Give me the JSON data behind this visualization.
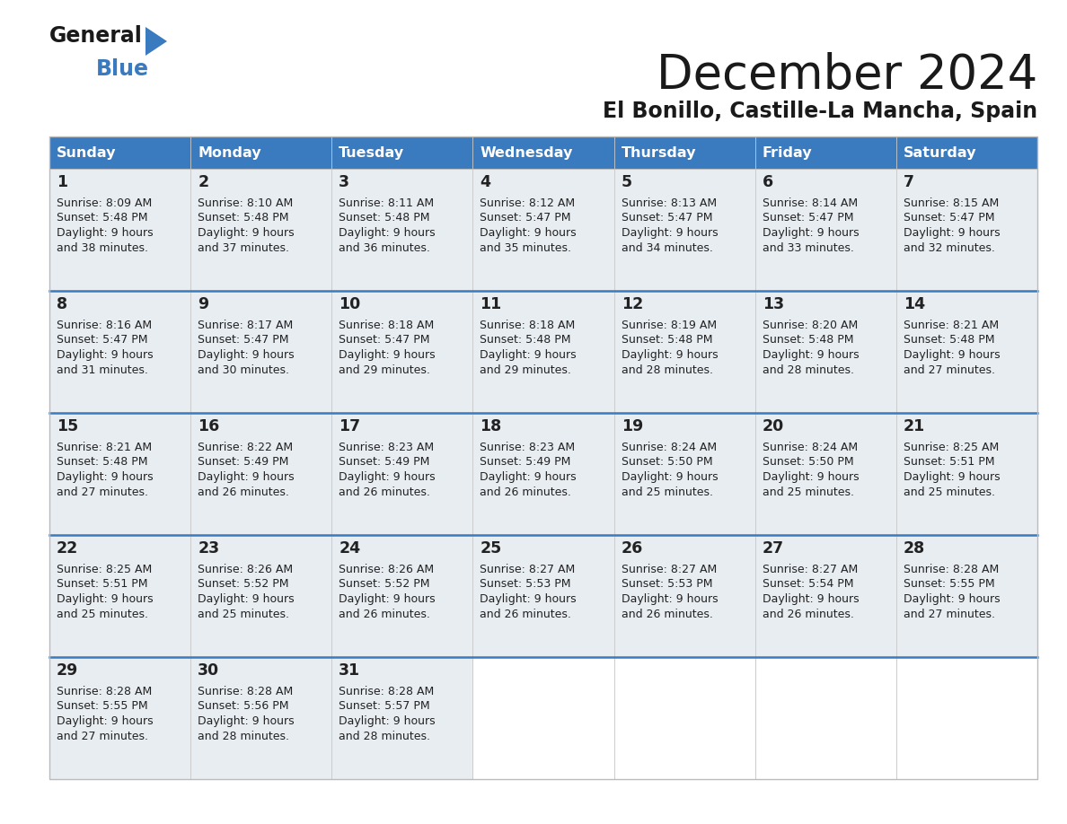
{
  "title": "December 2024",
  "subtitle": "El Bonillo, Castille-La Mancha, Spain",
  "days_of_week": [
    "Sunday",
    "Monday",
    "Tuesday",
    "Wednesday",
    "Thursday",
    "Friday",
    "Saturday"
  ],
  "header_bg": "#3a7abf",
  "header_text": "#ffffff",
  "cell_bg": "#e8edf2",
  "empty_cell_bg": "#ffffff",
  "separator_color": "#3a7abf",
  "text_color": "#222222",
  "calendar_data": [
    [
      {
        "day": 1,
        "sunrise": "8:09 AM",
        "sunset": "5:48 PM",
        "daylight": "9 hours and 38 minutes."
      },
      {
        "day": 2,
        "sunrise": "8:10 AM",
        "sunset": "5:48 PM",
        "daylight": "9 hours and 37 minutes."
      },
      {
        "day": 3,
        "sunrise": "8:11 AM",
        "sunset": "5:48 PM",
        "daylight": "9 hours and 36 minutes."
      },
      {
        "day": 4,
        "sunrise": "8:12 AM",
        "sunset": "5:47 PM",
        "daylight": "9 hours and 35 minutes."
      },
      {
        "day": 5,
        "sunrise": "8:13 AM",
        "sunset": "5:47 PM",
        "daylight": "9 hours and 34 minutes."
      },
      {
        "day": 6,
        "sunrise": "8:14 AM",
        "sunset": "5:47 PM",
        "daylight": "9 hours and 33 minutes."
      },
      {
        "day": 7,
        "sunrise": "8:15 AM",
        "sunset": "5:47 PM",
        "daylight": "9 hours and 32 minutes."
      }
    ],
    [
      {
        "day": 8,
        "sunrise": "8:16 AM",
        "sunset": "5:47 PM",
        "daylight": "9 hours and 31 minutes."
      },
      {
        "day": 9,
        "sunrise": "8:17 AM",
        "sunset": "5:47 PM",
        "daylight": "9 hours and 30 minutes."
      },
      {
        "day": 10,
        "sunrise": "8:18 AM",
        "sunset": "5:47 PM",
        "daylight": "9 hours and 29 minutes."
      },
      {
        "day": 11,
        "sunrise": "8:18 AM",
        "sunset": "5:48 PM",
        "daylight": "9 hours and 29 minutes."
      },
      {
        "day": 12,
        "sunrise": "8:19 AM",
        "sunset": "5:48 PM",
        "daylight": "9 hours and 28 minutes."
      },
      {
        "day": 13,
        "sunrise": "8:20 AM",
        "sunset": "5:48 PM",
        "daylight": "9 hours and 28 minutes."
      },
      {
        "day": 14,
        "sunrise": "8:21 AM",
        "sunset": "5:48 PM",
        "daylight": "9 hours and 27 minutes."
      }
    ],
    [
      {
        "day": 15,
        "sunrise": "8:21 AM",
        "sunset": "5:48 PM",
        "daylight": "9 hours and 27 minutes."
      },
      {
        "day": 16,
        "sunrise": "8:22 AM",
        "sunset": "5:49 PM",
        "daylight": "9 hours and 26 minutes."
      },
      {
        "day": 17,
        "sunrise": "8:23 AM",
        "sunset": "5:49 PM",
        "daylight": "9 hours and 26 minutes."
      },
      {
        "day": 18,
        "sunrise": "8:23 AM",
        "sunset": "5:49 PM",
        "daylight": "9 hours and 26 minutes."
      },
      {
        "day": 19,
        "sunrise": "8:24 AM",
        "sunset": "5:50 PM",
        "daylight": "9 hours and 25 minutes."
      },
      {
        "day": 20,
        "sunrise": "8:24 AM",
        "sunset": "5:50 PM",
        "daylight": "9 hours and 25 minutes."
      },
      {
        "day": 21,
        "sunrise": "8:25 AM",
        "sunset": "5:51 PM",
        "daylight": "9 hours and 25 minutes."
      }
    ],
    [
      {
        "day": 22,
        "sunrise": "8:25 AM",
        "sunset": "5:51 PM",
        "daylight": "9 hours and 25 minutes."
      },
      {
        "day": 23,
        "sunrise": "8:26 AM",
        "sunset": "5:52 PM",
        "daylight": "9 hours and 25 minutes."
      },
      {
        "day": 24,
        "sunrise": "8:26 AM",
        "sunset": "5:52 PM",
        "daylight": "9 hours and 26 minutes."
      },
      {
        "day": 25,
        "sunrise": "8:27 AM",
        "sunset": "5:53 PM",
        "daylight": "9 hours and 26 minutes."
      },
      {
        "day": 26,
        "sunrise": "8:27 AM",
        "sunset": "5:53 PM",
        "daylight": "9 hours and 26 minutes."
      },
      {
        "day": 27,
        "sunrise": "8:27 AM",
        "sunset": "5:54 PM",
        "daylight": "9 hours and 26 minutes."
      },
      {
        "day": 28,
        "sunrise": "8:28 AM",
        "sunset": "5:55 PM",
        "daylight": "9 hours and 27 minutes."
      }
    ],
    [
      {
        "day": 29,
        "sunrise": "8:28 AM",
        "sunset": "5:55 PM",
        "daylight": "9 hours and 27 minutes."
      },
      {
        "day": 30,
        "sunrise": "8:28 AM",
        "sunset": "5:56 PM",
        "daylight": "9 hours and 28 minutes."
      },
      {
        "day": 31,
        "sunrise": "8:28 AM",
        "sunset": "5:57 PM",
        "daylight": "9 hours and 28 minutes."
      },
      null,
      null,
      null,
      null
    ]
  ],
  "logo_triangle_color": "#3a7abf"
}
